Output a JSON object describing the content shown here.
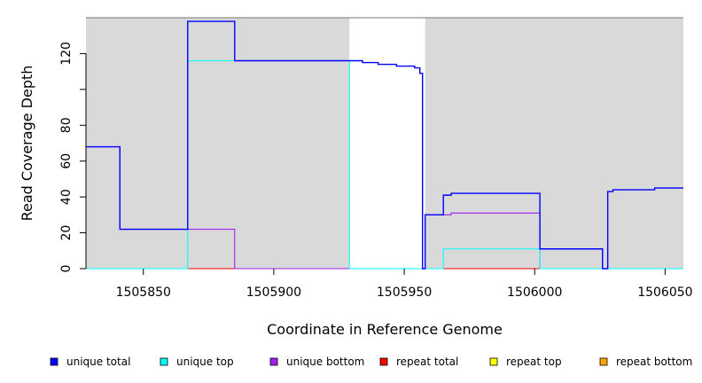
{
  "chart_data": {
    "type": "line",
    "title": "",
    "xlabel": "Coordinate in Reference Genome",
    "ylabel": "Read Coverage Depth",
    "xlim": [
      1505828,
      1506057
    ],
    "ylim": [
      0,
      140
    ],
    "x_ticks": [
      1505850,
      1505900,
      1505950,
      1506000,
      1506050
    ],
    "y_ticks": [
      0,
      20,
      40,
      60,
      80,
      100,
      120
    ],
    "y_tick_labels": [
      "0",
      "20",
      "40",
      "60",
      "80",
      "",
      "120"
    ],
    "background_color": "#d9d9d9",
    "gap_regions": [
      [
        1505929,
        1505958
      ]
    ],
    "grid": false,
    "legend_position": "bottom",
    "series": [
      {
        "name": "unique total",
        "color": "#0000ff",
        "points": [
          [
            1505828,
            68
          ],
          [
            1505841,
            68
          ],
          [
            1505841,
            22
          ],
          [
            1505867,
            22
          ],
          [
            1505867,
            138
          ],
          [
            1505885,
            138
          ],
          [
            1505885,
            116
          ],
          [
            1505934,
            116
          ],
          [
            1505934,
            115
          ],
          [
            1505940,
            115
          ],
          [
            1505940,
            114
          ],
          [
            1505947,
            114
          ],
          [
            1505947,
            113
          ],
          [
            1505954,
            113
          ],
          [
            1505954,
            112
          ],
          [
            1505956,
            112
          ],
          [
            1505956,
            109
          ],
          [
            1505957,
            109
          ],
          [
            1505957,
            0
          ],
          [
            1505958,
            0
          ],
          [
            1505958,
            30
          ],
          [
            1505965,
            30
          ],
          [
            1505965,
            41
          ],
          [
            1505968,
            41
          ],
          [
            1505968,
            42
          ],
          [
            1506002,
            42
          ],
          [
            1506002,
            11
          ],
          [
            1506026,
            11
          ],
          [
            1506026,
            0
          ],
          [
            1506028,
            0
          ],
          [
            1506028,
            43
          ],
          [
            1506030,
            43
          ],
          [
            1506030,
            44
          ],
          [
            1506046,
            44
          ],
          [
            1506046,
            45
          ],
          [
            1506057,
            45
          ]
        ]
      },
      {
        "name": "unique top",
        "color": "#00ffff",
        "points": [
          [
            1505828,
            0
          ],
          [
            1505867,
            0
          ],
          [
            1505867,
            116
          ],
          [
            1505885,
            116
          ],
          [
            1505885,
            116
          ],
          [
            1505929,
            116
          ],
          [
            1505929,
            0
          ],
          [
            1505965,
            0
          ],
          [
            1505965,
            11
          ],
          [
            1506002,
            11
          ],
          [
            1506002,
            0
          ],
          [
            1506057,
            0
          ]
        ]
      },
      {
        "name": "unique bottom",
        "color": "#a020f0",
        "points": [
          [
            1505828,
            68
          ],
          [
            1505841,
            68
          ],
          [
            1505841,
            22
          ],
          [
            1505867,
            22
          ],
          [
            1505867,
            22
          ],
          [
            1505885,
            22
          ],
          [
            1505885,
            0
          ],
          [
            1505958,
            0
          ],
          [
            1505958,
            30
          ],
          [
            1505965,
            30
          ],
          [
            1505965,
            30
          ],
          [
            1505968,
            30
          ],
          [
            1505968,
            31
          ],
          [
            1506002,
            31
          ],
          [
            1506002,
            0
          ],
          [
            1506057,
            0
          ]
        ]
      },
      {
        "name": "repeat total",
        "color": "#ff0000",
        "points": [
          [
            1505828,
            0
          ],
          [
            1506057,
            0
          ]
        ]
      },
      {
        "name": "repeat top",
        "color": "#ffff00",
        "points": [
          [
            1505828,
            0
          ],
          [
            1506057,
            0
          ]
        ]
      },
      {
        "name": "repeat bottom",
        "color": "#ffa500",
        "points": [
          [
            1505828,
            0
          ],
          [
            1506057,
            0
          ]
        ]
      }
    ]
  }
}
